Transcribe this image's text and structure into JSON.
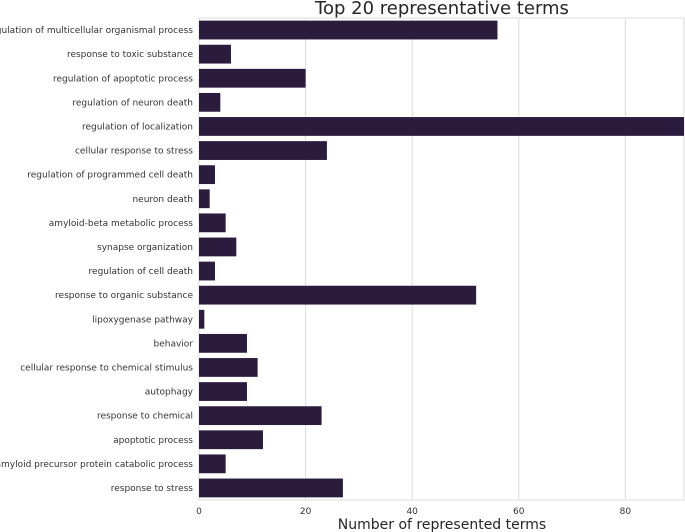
{
  "chart_data": {
    "type": "bar",
    "orientation": "horizontal",
    "title": "Top 20 representative terms",
    "xlabel": "Number of represented terms",
    "ylabel": "",
    "xlim": [
      0,
      91
    ],
    "x_ticks": [
      0,
      20,
      40,
      60,
      80
    ],
    "grid": true,
    "bar_color": "#2b1b3d",
    "categories": [
      "regulation of multicellular organismal process",
      "response to toxic substance",
      "regulation of apoptotic process",
      "regulation of neuron death",
      "regulation of localization",
      "cellular response to stress",
      "regulation of programmed cell death",
      "neuron death",
      "amyloid-beta metabolic process",
      "synapse organization",
      "regulation of cell death",
      "response to organic substance",
      "lipoxygenase pathway",
      "behavior",
      "cellular response to chemical stimulus",
      "autophagy",
      "response to chemical",
      "apoptotic process",
      "amyloid precursor protein catabolic process",
      "response to stress"
    ],
    "values": [
      56,
      6,
      20,
      4,
      91,
      24,
      3,
      2,
      5,
      7,
      3,
      52,
      1,
      9,
      11,
      9,
      23,
      12,
      5,
      27
    ]
  }
}
